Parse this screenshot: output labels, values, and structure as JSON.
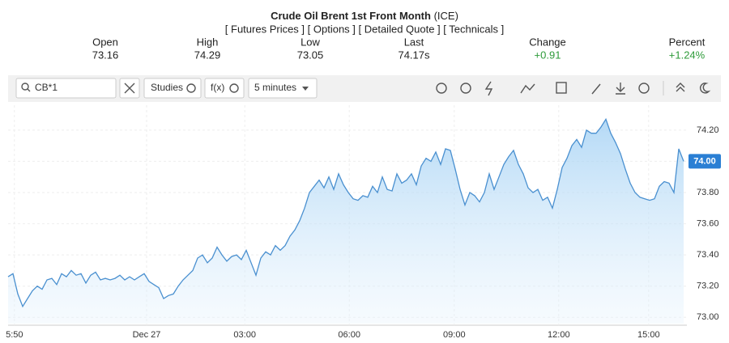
{
  "header": {
    "title": "Crude Oil Brent 1st Front Month",
    "exchange": "(ICE)",
    "links": "[ Futures Prices ] [ Options ] [ Detailed Quote ] [ Technicals ]",
    "stats": [
      {
        "label": "Open",
        "value": "73.16"
      },
      {
        "label": "High",
        "value": "74.29"
      },
      {
        "label": "Low",
        "value": "73.05"
      },
      {
        "label": "Last",
        "value": "74.17s"
      },
      {
        "label": "Change",
        "value": "+0.91"
      },
      {
        "label": "Percent",
        "value": "+1.24%"
      }
    ]
  },
  "toolbar": {
    "symbol": "CB*1",
    "studies": "Studies",
    "fx": "f(x)",
    "interval": "5 minutes"
  },
  "chart_data": {
    "type": "area",
    "color": "#4a90d0",
    "grid": true,
    "price_tag": "74.00",
    "values": [
      73.26,
      73.28,
      73.15,
      73.07,
      73.12,
      73.17,
      73.2,
      73.18,
      73.24,
      73.25,
      73.21,
      73.28,
      73.26,
      73.3,
      73.27,
      73.28,
      73.22,
      73.27,
      73.29,
      73.24,
      73.25,
      73.24,
      73.25,
      73.27,
      73.24,
      73.26,
      73.24,
      73.26,
      73.28,
      73.23,
      73.21,
      73.19,
      73.12,
      73.14,
      73.15,
      73.2,
      73.24,
      73.27,
      73.3,
      73.38,
      73.4,
      73.35,
      73.38,
      73.45,
      73.4,
      73.36,
      73.39,
      73.4,
      73.37,
      73.43,
      73.35,
      73.27,
      73.38,
      73.42,
      73.4,
      73.46,
      73.43,
      73.46,
      73.52,
      73.56,
      73.62,
      73.7,
      73.8,
      73.84,
      73.88,
      73.83,
      73.9,
      73.82,
      73.92,
      73.85,
      73.8,
      73.76,
      73.75,
      73.78,
      73.77,
      73.84,
      73.8,
      73.9,
      73.82,
      73.81,
      73.92,
      73.86,
      73.88,
      73.92,
      73.85,
      73.97,
      74.02,
      74.0,
      74.06,
      73.98,
      74.08,
      74.07,
      73.95,
      73.82,
      73.72,
      73.8,
      73.78,
      73.74,
      73.8,
      73.92,
      73.82,
      73.9,
      73.98,
      74.03,
      74.07,
      73.98,
      73.92,
      73.83,
      73.8,
      73.82,
      73.75,
      73.77,
      73.7,
      73.82,
      73.96,
      74.02,
      74.1,
      74.14,
      74.09,
      74.2,
      74.18,
      74.18,
      74.22,
      74.27,
      74.18,
      74.12,
      74.05,
      73.95,
      73.86,
      73.8,
      73.77,
      73.76,
      73.75,
      73.76,
      73.84,
      73.87,
      73.86,
      73.8,
      74.08,
      74.0
    ],
    "xlim": [
      0,
      138
    ],
    "xticks": [
      {
        "value": 1.3,
        "label": "5:50"
      },
      {
        "value": 28.5,
        "label": "Dec 27"
      },
      {
        "value": 48.7,
        "label": "03:00"
      },
      {
        "value": 70.2,
        "label": "06:00"
      },
      {
        "value": 91.8,
        "label": "09:00"
      },
      {
        "value": 113.3,
        "label": "12:00"
      },
      {
        "value": 131.8,
        "label": "15:00"
      }
    ],
    "ylim": [
      72.96,
      74.36
    ],
    "yticks": [
      {
        "value": 73.0,
        "label": "73.00"
      },
      {
        "value": 73.2,
        "label": "73.20"
      },
      {
        "value": 73.4,
        "label": "73.40"
      },
      {
        "value": 73.6,
        "label": "73.60"
      },
      {
        "value": 73.8,
        "label": "73.80"
      },
      {
        "value": 74.0,
        "label": "74.00"
      },
      {
        "value": 74.2,
        "label": "74.20"
      }
    ]
  }
}
